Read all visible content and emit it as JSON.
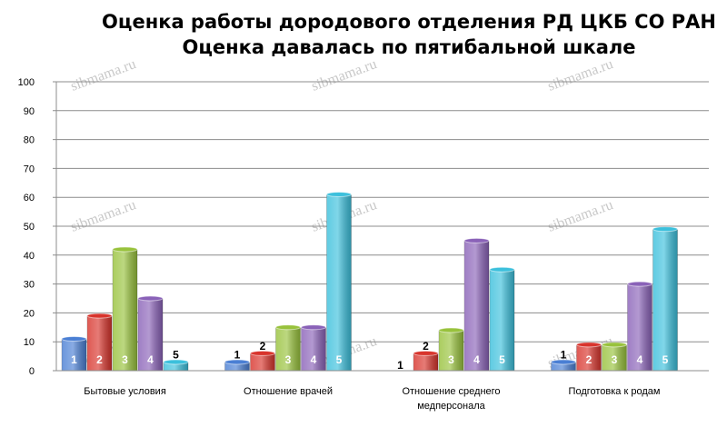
{
  "chart_data": {
    "type": "bar",
    "title": "Оценка работы дородового отделения РД ЦКБ СО РАН",
    "subtitle": "Оценка давалась по пятибальной шкале",
    "categories": [
      "Бытовые условия",
      "Отношение врачей",
      "Отношение среднего медперсонала",
      "Подготовка к родам"
    ],
    "category_lines": [
      [
        "Бытовые условия"
      ],
      [
        "Отношение врачей"
      ],
      [
        "Отношение среднего",
        "медперсонала"
      ],
      [
        "Подготовка к родам"
      ]
    ],
    "series": [
      {
        "name": "1",
        "values": [
          11,
          3,
          0,
          3
        ],
        "color": "#4a7fd4"
      },
      {
        "name": "2",
        "values": [
          19,
          6,
          6,
          9
        ],
        "color": "#d8342c"
      },
      {
        "name": "3",
        "values": [
          42,
          15,
          14,
          9
        ],
        "color": "#98c23c"
      },
      {
        "name": "4",
        "values": [
          25,
          15,
          45,
          30
        ],
        "color": "#8a62b8"
      },
      {
        "name": "5",
        "values": [
          3,
          61,
          35,
          49
        ],
        "color": "#3cc0dc"
      }
    ],
    "ylim": [
      0,
      100
    ],
    "yticks": [
      0,
      10,
      20,
      30,
      40,
      50,
      60,
      70,
      80,
      90,
      100
    ],
    "grid": true,
    "legend": "none",
    "xlabel": "",
    "ylabel": ""
  },
  "watermark": "sibmama.ru"
}
